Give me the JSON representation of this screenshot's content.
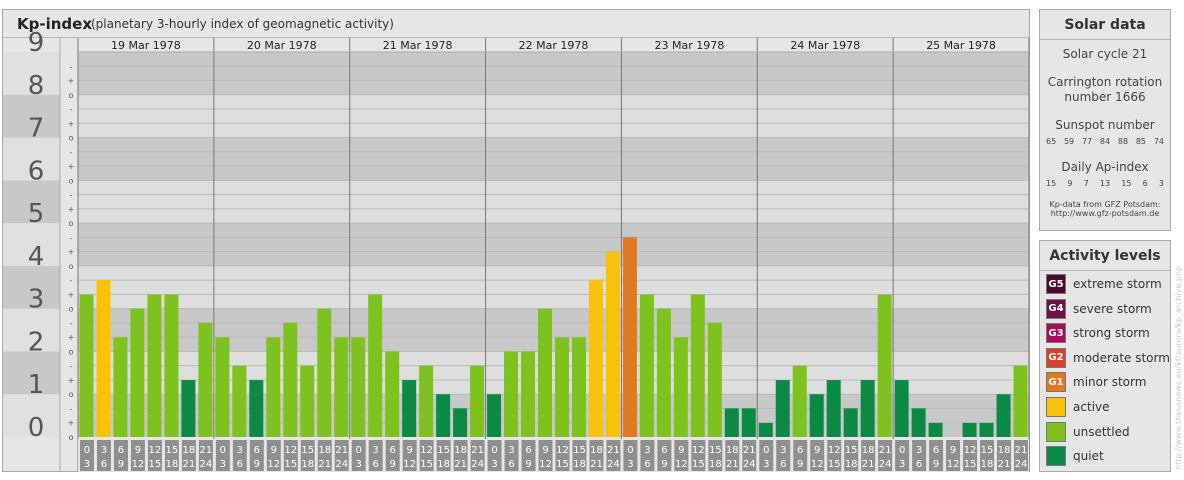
{
  "header": {
    "title": "Kp-index",
    "subtitle": "(planetary 3-hourly index of geomagnetic activity)"
  },
  "chart_data": {
    "type": "bar",
    "title": "Kp-index",
    "subtitle": "(planetary 3-hourly index of geomagnetic activity)",
    "y_ticks": [
      "0",
      "1",
      "2",
      "3",
      "4",
      "5",
      "6",
      "7",
      "8",
      "9"
    ],
    "y_minor_ticks": [
      "o",
      "+",
      "-"
    ],
    "ylim": [
      0,
      9
    ],
    "days": [
      "19 Mar 1978",
      "20 Mar 1978",
      "21 Mar 1978",
      "22 Mar 1978",
      "23 Mar 1978",
      "24 Mar 1978",
      "25 Mar 1978"
    ],
    "interval_labels_top": [
      "0",
      "3",
      "6",
      "9",
      "12",
      "15",
      "18",
      "21"
    ],
    "interval_labels_bottom": [
      "3",
      "6",
      "9",
      "12",
      "15",
      "18",
      "21",
      "24"
    ],
    "values": [
      [
        3.33,
        3.67,
        2.33,
        3.0,
        3.33,
        3.33,
        1.33,
        2.67
      ],
      [
        2.33,
        1.67,
        1.33,
        2.33,
        2.67,
        1.67,
        3.0,
        2.33
      ],
      [
        2.33,
        3.33,
        2.0,
        1.33,
        1.67,
        1.0,
        0.67,
        1.67
      ],
      [
        1.0,
        2.0,
        2.0,
        3.0,
        2.33,
        2.33,
        3.67,
        4.33
      ],
      [
        4.67,
        3.33,
        3.0,
        2.33,
        3.33,
        2.67,
        0.67,
        0.67
      ],
      [
        0.33,
        1.33,
        1.67,
        1.0,
        1.33,
        0.67,
        1.33,
        3.33
      ],
      [
        1.33,
        0.67,
        0.33,
        0.0,
        0.33,
        0.33,
        1.0,
        1.67
      ]
    ],
    "thresholds": {
      "quiet_max": 1.67,
      "unsettled_max": 3.33,
      "active_max": 4.33
    },
    "grid": true
  },
  "colors": {
    "extreme": "#4b0a2b",
    "severe": "#6d1244",
    "strong": "#a50d5a",
    "moderate": "#d9402b",
    "minor": "#e27822",
    "active": "#f8c20b",
    "unsettled": "#7dc21f",
    "quiet": "#0b8a46",
    "band_dark": "#c8c8c8",
    "band_light": "#dedede",
    "ylabel_band_dark": "#c8c8c8",
    "ylabel_band_light": "#e0e0e0"
  },
  "solar": {
    "title": "Solar data",
    "cycle": "Solar cycle 21",
    "carrington_line1": "Carrington rotation",
    "carrington_line2": "number 1666",
    "sunspot_title": "Sunspot number",
    "sunspots": [
      "65",
      "59",
      "77",
      "84",
      "88",
      "85",
      "74"
    ],
    "ap_title": "Daily Ap-index",
    "ap": [
      "15",
      "9",
      "7",
      "13",
      "15",
      "6",
      "3"
    ],
    "source_line1": "Kp-data from GFZ Potsdam:",
    "source_line2": "http://www.gfz-potsdam.de"
  },
  "levels": {
    "title": "Activity levels",
    "items": [
      {
        "badge": "G5",
        "label": "extreme storm",
        "color": "#4b0a2b"
      },
      {
        "badge": "G4",
        "label": "severe storm",
        "color": "#6d1244"
      },
      {
        "badge": "G3",
        "label": "strong storm",
        "color": "#a50d5a"
      },
      {
        "badge": "G2",
        "label": "moderate storm",
        "color": "#d9402b"
      },
      {
        "badge": "G1",
        "label": "minor storm",
        "color": "#e27822"
      },
      {
        "badge": "",
        "label": "active",
        "color": "#f8c20b"
      },
      {
        "badge": "",
        "label": "unsettled",
        "color": "#7dc21f"
      },
      {
        "badge": "",
        "label": "quiet",
        "color": "#0b8a46"
      }
    ]
  },
  "watermark": "http://www.theusnews.eu/kf/aurora/kp_archive.php"
}
